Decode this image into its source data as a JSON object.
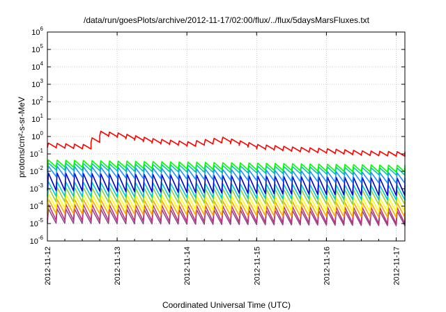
{
  "chart_data": {
    "type": "line",
    "title": "/data/run/goesPlots/archive/2012-11-17/02:00/flux/../flux/5daysMarsFluxes.txt",
    "xlabel": "Coordinated Universal Time (UTC)",
    "ylabel": "protons/cm²-s-sr-MeV",
    "y_scale": "log",
    "ylim": [
      "1e-6",
      "1e6"
    ],
    "y_ticks": [
      {
        "base": "10",
        "exp": "6"
      },
      {
        "base": "10",
        "exp": "5"
      },
      {
        "base": "10",
        "exp": "4"
      },
      {
        "base": "10",
        "exp": "3"
      },
      {
        "base": "10",
        "exp": "2"
      },
      {
        "base": "10",
        "exp": "1"
      },
      {
        "base": "10",
        "exp": "0"
      },
      {
        "base": "10",
        "exp": "-1"
      },
      {
        "base": "10",
        "exp": "-2"
      },
      {
        "base": "10",
        "exp": "-3"
      },
      {
        "base": "10",
        "exp": "-4"
      },
      {
        "base": "10",
        "exp": "-5"
      },
      {
        "base": "10",
        "exp": "-6"
      }
    ],
    "xlim": [
      "2012-11-12",
      "2012-11-17 03:00"
    ],
    "x_ticks": [
      "2012-11-12",
      "2012-11-13",
      "2012-11-14",
      "2012-11-15",
      "2012-11-16",
      "2012-11-17"
    ],
    "grid": true,
    "sawtooth_period_hours": 3,
    "series": [
      {
        "color": "#ff0000",
        "baseline": [
          [
            "2012-11-12 00:00",
            0.42
          ],
          [
            "2012-11-12 12:00",
            0.35
          ],
          [
            "2012-11-12 18:00",
            2.0
          ],
          [
            "2012-11-13 00:00",
            1.6
          ],
          [
            "2012-11-13 12:00",
            0.75
          ],
          [
            "2012-11-14 00:00",
            0.5
          ],
          [
            "2012-11-14 12:00",
            0.9
          ],
          [
            "2012-11-15 00:00",
            0.35
          ],
          [
            "2012-11-15 12:00",
            0.25
          ],
          [
            "2012-11-16 00:00",
            0.2
          ],
          [
            "2012-11-16 12:00",
            0.15
          ],
          [
            "2012-11-17 03:00",
            0.13
          ]
        ],
        "dip_factor": 0.55
      },
      {
        "color": "#00ff00",
        "baseline": [
          [
            "2012-11-12 00:00",
            0.045
          ],
          [
            "2012-11-17 03:00",
            0.022
          ]
        ],
        "dip_factor": 0.4
      },
      {
        "color": "#00c8aa",
        "baseline": [
          [
            "2012-11-12 00:00",
            0.03
          ],
          [
            "2012-11-17 03:00",
            0.015
          ]
        ],
        "dip_factor": 0.4
      },
      {
        "color": "#1e90ff",
        "baseline": [
          [
            "2012-11-12 00:00",
            0.02
          ],
          [
            "2012-11-17 03:00",
            0.008
          ]
        ],
        "dip_factor": 0.25
      },
      {
        "color": "#0000cd",
        "baseline": [
          [
            "2012-11-12 00:00",
            0.008
          ],
          [
            "2012-11-17 03:00",
            0.004
          ]
        ],
        "dip_factor": 0.1
      },
      {
        "color": "#00cccc",
        "baseline": [
          [
            "2012-11-12 00:00",
            0.0025
          ],
          [
            "2012-11-17 03:00",
            0.0015
          ]
        ],
        "dip_factor": 0.15
      },
      {
        "color": "#9acd32",
        "baseline": [
          [
            "2012-11-12 00:00",
            0.0012
          ],
          [
            "2012-11-17 03:00",
            0.0008
          ]
        ],
        "dip_factor": 0.15
      },
      {
        "color": "#ffff00",
        "baseline": [
          [
            "2012-11-12 00:00",
            0.0005
          ],
          [
            "2012-11-17 03:00",
            0.0003
          ]
        ],
        "dip_factor": 0.15
      },
      {
        "color": "#ffa500",
        "baseline": [
          [
            "2012-11-12 00:00",
            0.00025
          ],
          [
            "2012-11-17 03:00",
            0.00015
          ]
        ],
        "dip_factor": 0.15
      },
      {
        "color": "#c0307a",
        "baseline": [
          [
            "2012-11-12 00:00",
            0.00013
          ],
          [
            "2012-11-17 03:00",
            8e-05
          ]
        ],
        "dip_factor": 0.12
      },
      {
        "color": "#8b4a8b",
        "baseline": [
          [
            "2012-11-12 00:00",
            7e-05
          ],
          [
            "2012-11-17 03:00",
            5e-05
          ]
        ],
        "dip_factor": 0.15
      }
    ]
  }
}
